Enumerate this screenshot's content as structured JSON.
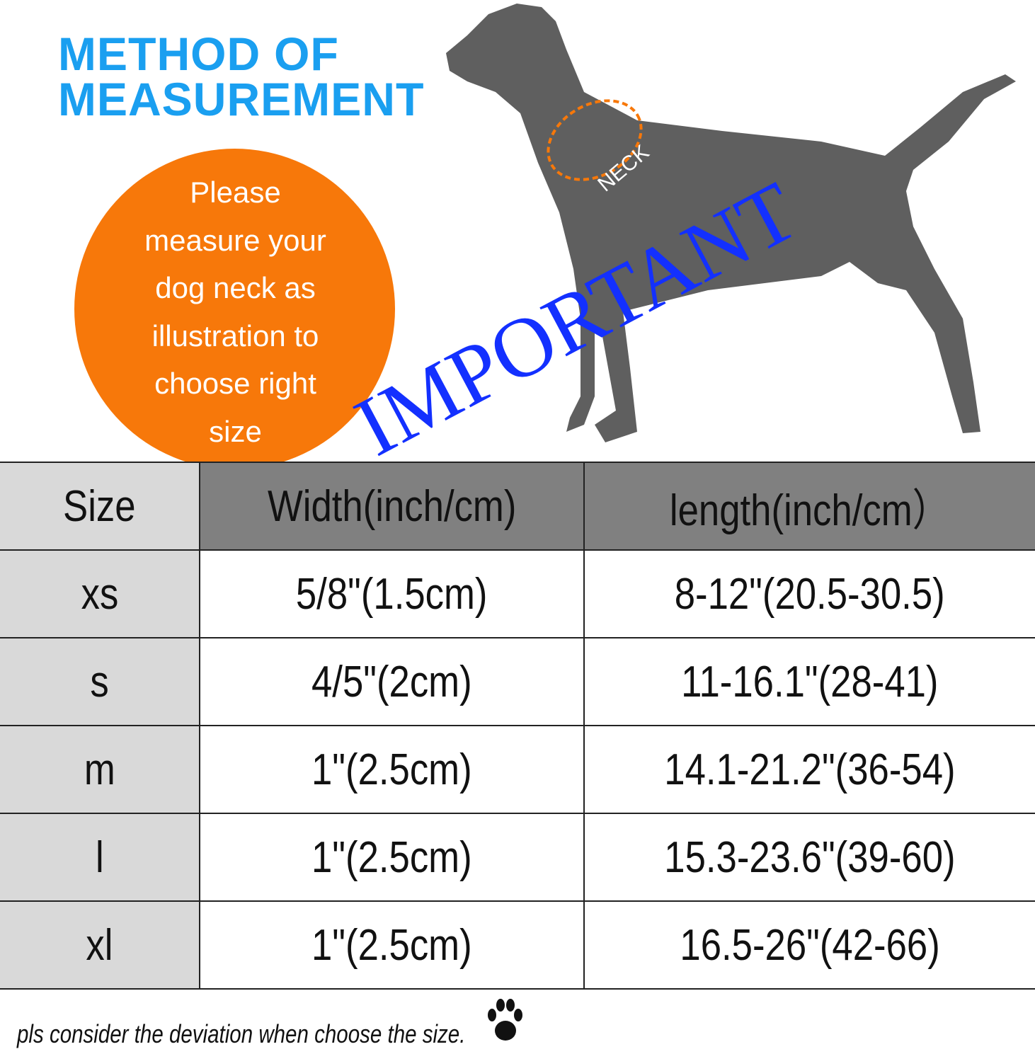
{
  "title_line1": "METHOD OF",
  "title_line2": "MEASUREMENT",
  "circle_text": [
    "Please",
    "measure your",
    "dog neck as",
    "illustration to",
    "choose right",
    "size"
  ],
  "neck_label": "NECK",
  "stamp": "IMPORTANT",
  "table": {
    "headers": [
      "Size",
      "Width(inch/cm)",
      "length(inch/cm）"
    ],
    "rows": [
      [
        "xs",
        "5/8\"(1.5cm)",
        "8-12\"(20.5-30.5)"
      ],
      [
        "s",
        "4/5\"(2cm)",
        "11-16.1\"(28-41)"
      ],
      [
        "m",
        "1\"(2.5cm)",
        "14.1-21.2\"(36-54)"
      ],
      [
        "l",
        "1\"(2.5cm)",
        "15.3-23.6\"(39-60)"
      ],
      [
        "xl",
        "1\"(2.5cm)",
        "16.5-26\"(42-66)"
      ]
    ]
  },
  "note": "pls consider the deviation when choose the size.",
  "colors": {
    "title": "#1a9ff0",
    "circle": "#f7780a",
    "stamp": "#1330ff",
    "dog": "#5f5f5f",
    "header": "#808080",
    "size_col": "#d9d9d9"
  }
}
